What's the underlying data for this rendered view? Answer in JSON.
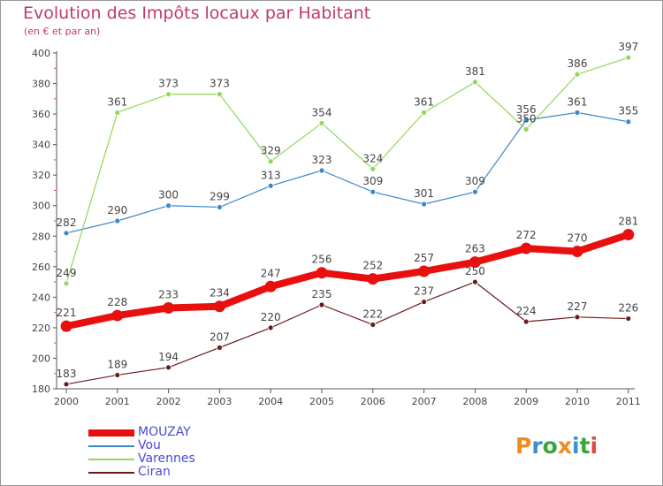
{
  "title": "Evolution des Impôts locaux par Habitant",
  "subtitle": "(en € et par an)",
  "logo": {
    "text": "Proxiti",
    "letter_colors": [
      "#f08c1e",
      "#3a8fd8",
      "#3aa640",
      "#f08c1e",
      "#3a8fd8",
      "#3aa640",
      "#e8453c"
    ]
  },
  "chart_data": {
    "type": "line",
    "x": [
      "2000",
      "2001",
      "2002",
      "2003",
      "2004",
      "2005",
      "2006",
      "2007",
      "2008",
      "2009",
      "2010",
      "2011"
    ],
    "ylim": [
      180,
      400
    ],
    "yticks": [
      180,
      200,
      220,
      240,
      260,
      280,
      300,
      320,
      340,
      360,
      380,
      400
    ],
    "grid": false,
    "legend_position": "bottom-left",
    "series": [
      {
        "name": "MOUZAY",
        "color": "#e8100e",
        "values": [
          221,
          228,
          233,
          234,
          247,
          256,
          252,
          257,
          263,
          272,
          270,
          281
        ]
      },
      {
        "name": "Vou",
        "color": "#3b87c8",
        "values": [
          282,
          290,
          300,
          299,
          313,
          323,
          309,
          301,
          309,
          356,
          361,
          355
        ]
      },
      {
        "name": "Varennes",
        "color": "#8fd85a",
        "values": [
          249,
          361,
          373,
          373,
          329,
          354,
          324,
          361,
          381,
          350,
          386,
          397
        ]
      },
      {
        "name": "Ciran",
        "color": "#6b1b1b",
        "values": [
          183,
          189,
          194,
          207,
          220,
          235,
          222,
          237,
          250,
          224,
          227,
          226
        ]
      }
    ]
  }
}
